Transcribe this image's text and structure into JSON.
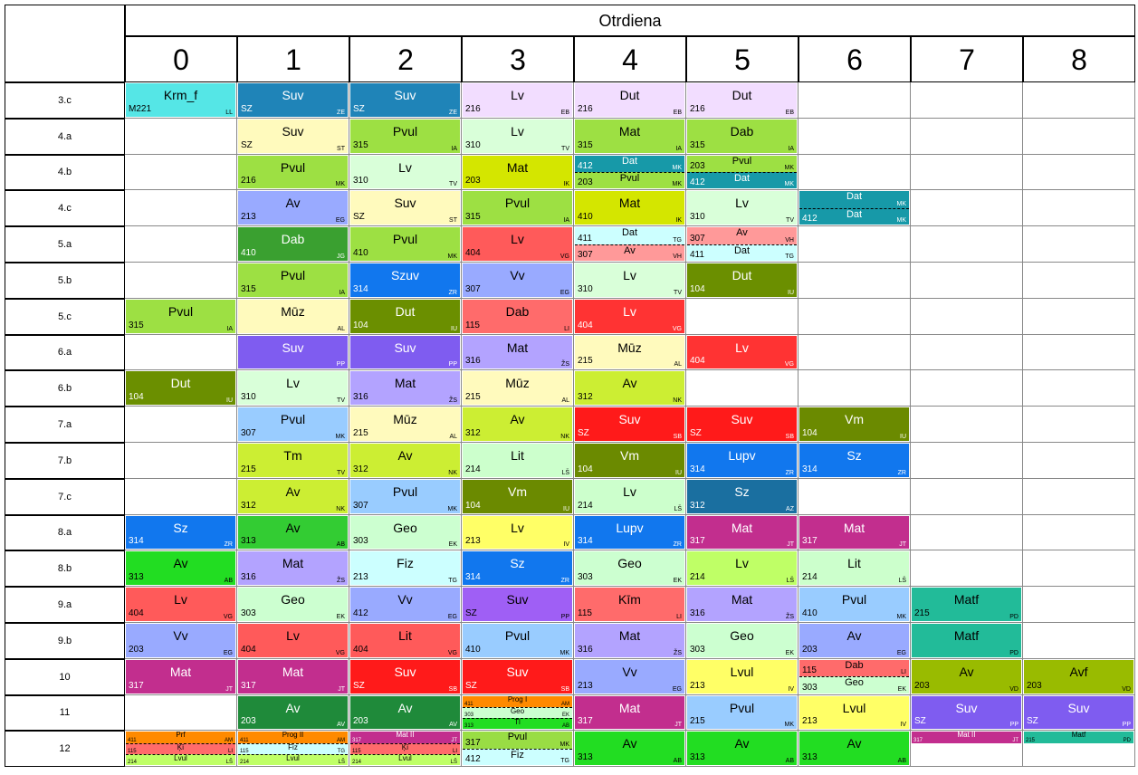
{
  "header": {
    "title": "Otrdiena"
  },
  "columns": [
    "0",
    "1",
    "2",
    "3",
    "4",
    "5",
    "6",
    "7",
    "8"
  ],
  "rows": [
    "3.c",
    "4.a",
    "4.b",
    "4.c",
    "5.a",
    "5.b",
    "5.c",
    "6.a",
    "6.b",
    "7.a",
    "7.b",
    "7.c",
    "8.a",
    "8.b",
    "9.a",
    "9.b",
    "10",
    "11",
    "12"
  ],
  "colors": {
    "Krm_f": "#55e6e6",
    "Suv_a": "#1e7fb0",
    "Suv_b": "#fff9bd",
    "Suv_c": "#7f5cf0",
    "Suv_d": "#ff1a1a",
    "Suv_e": "#9f5ff5",
    "Lv_a": "#f0d9ff",
    "Lv_b": "#d9ffd9",
    "Lv_c": "#ff5a5a",
    "Lv_d": "#ffff66",
    "Lv_e": "#bfff66",
    "Dut": "#f0d9ff",
    "Dut_b": "#6b8f00",
    "Mat_a": "#ccee33",
    "Mat_b": "#b3a3ff",
    "Mat_c": "#c22e8e",
    "Pvul": "#99dd44",
    "Pvul_b": "#cfe0ff",
    "Av_a": "#99aaff",
    "Av_b": "#33cc33",
    "Av_c": "#99cc00",
    "Av_d": "#ffd0d0",
    "Dab": "#3aa030",
    "Dab_b": "#ff6b6b",
    "Mūz": "#fffabb",
    "Vv": "#99aaee",
    "Szuv": "#1177ee",
    "Geo": "#ccffd0",
    "Sz": "#1177ee",
    "Sz_b": "#1a6fa0",
    "Tm": "#ccee33",
    "Vm": "#6b8a00",
    "Lit": "#ccffcc",
    "Lupv": "#1177ee",
    "Fiz": "#ccffff",
    "Kīm": "#ff6b6b",
    "Matf": "#22bb99",
    "Avf": "#99bb00",
    "Lvul": "#ffff66",
    "Dat": "#1799a8",
    "Suv_f": "#7f5cf0"
  },
  "cells": [
    {
      "r": 0,
      "c": 0,
      "room": "M221",
      "subj": "Krm_f",
      "t": "LL",
      "col": "#55e6e6"
    },
    {
      "r": 0,
      "c": 1,
      "room": "SZ",
      "subj": "Suv",
      "t": "ZE",
      "col": "#1f84b8"
    },
    {
      "r": 0,
      "c": 2,
      "room": "SZ",
      "subj": "Suv",
      "t": "ZE",
      "col": "#1f84b8"
    },
    {
      "r": 0,
      "c": 3,
      "room": "216",
      "subj": "Lv",
      "t": "EB",
      "col": "#f2ddff"
    },
    {
      "r": 0,
      "c": 4,
      "room": "216",
      "subj": "Dut",
      "t": "EB",
      "col": "#f2ddff"
    },
    {
      "r": 0,
      "c": 5,
      "room": "216",
      "subj": "Dut",
      "t": "EB",
      "col": "#f2ddff"
    },
    {
      "r": 1,
      "c": 1,
      "room": "SZ",
      "subj": "Suv",
      "t": "ST",
      "col": "#fffabd"
    },
    {
      "r": 1,
      "c": 2,
      "room": "315",
      "subj": "Pvul",
      "t": "IA",
      "col": "#9de043"
    },
    {
      "r": 1,
      "c": 3,
      "room": "310",
      "subj": "Lv",
      "t": "TV",
      "col": "#d9ffd9"
    },
    {
      "r": 1,
      "c": 4,
      "room": "315",
      "subj": "Mat",
      "t": "IA",
      "col": "#9de043"
    },
    {
      "r": 1,
      "c": 5,
      "room": "315",
      "subj": "Dab",
      "t": "IA",
      "col": "#9de043"
    },
    {
      "r": 2,
      "c": 1,
      "room": "216",
      "subj": "Pvul",
      "t": "MK",
      "col": "#9de043"
    },
    {
      "r": 2,
      "c": 2,
      "room": "310",
      "subj": "Lv",
      "t": "TV",
      "col": "#d9ffd9"
    },
    {
      "r": 2,
      "c": 3,
      "room": "203",
      "subj": "Mat",
      "t": "IK",
      "col": "#d4e600"
    },
    {
      "r": 3,
      "c": 1,
      "room": "213",
      "subj": "Av",
      "t": "EG",
      "col": "#99aaff"
    },
    {
      "r": 3,
      "c": 2,
      "room": "SZ",
      "subj": "Suv",
      "t": "ST",
      "col": "#fffabd"
    },
    {
      "r": 3,
      "c": 3,
      "room": "315",
      "subj": "Pvul",
      "t": "IA",
      "col": "#9de043"
    },
    {
      "r": 3,
      "c": 4,
      "room": "410",
      "subj": "Mat",
      "t": "IK",
      "col": "#d4e600"
    },
    {
      "r": 3,
      "c": 5,
      "room": "310",
      "subj": "Lv",
      "t": "TV",
      "col": "#d9ffd9"
    },
    {
      "r": 4,
      "c": 1,
      "room": "410",
      "subj": "Dab",
      "t": "JG",
      "col": "#3aa030"
    },
    {
      "r": 4,
      "c": 2,
      "room": "410",
      "subj": "Pvul",
      "t": "MK",
      "col": "#9de043"
    },
    {
      "r": 4,
      "c": 3,
      "room": "404",
      "subj": "Lv",
      "t": "VG",
      "col": "#ff5a5a"
    },
    {
      "r": 5,
      "c": 1,
      "room": "315",
      "subj": "Pvul",
      "t": "IA",
      "col": "#9de043"
    },
    {
      "r": 5,
      "c": 2,
      "room": "314",
      "subj": "Szuv",
      "t": "ZR",
      "col": "#1177ee"
    },
    {
      "r": 5,
      "c": 3,
      "room": "307",
      "subj": "Vv",
      "t": "EG",
      "col": "#99aaff"
    },
    {
      "r": 5,
      "c": 4,
      "room": "310",
      "subj": "Lv",
      "t": "TV",
      "col": "#d9ffd9"
    },
    {
      "r": 5,
      "c": 5,
      "room": "104",
      "subj": "Dut",
      "t": "IU",
      "col": "#6b8f00"
    },
    {
      "r": 6,
      "c": 0,
      "room": "315",
      "subj": "Pvul",
      "t": "IA",
      "col": "#9de043"
    },
    {
      "r": 6,
      "c": 1,
      "room": "",
      "subj": "Mūz",
      "t": "AL",
      "col": "#fffabd"
    },
    {
      "r": 6,
      "c": 2,
      "room": "104",
      "subj": "Dut",
      "t": "IU",
      "col": "#6b8f00"
    },
    {
      "r": 6,
      "c": 3,
      "room": "115",
      "subj": "Dab",
      "t": "LI",
      "col": "#ff6b6b"
    },
    {
      "r": 6,
      "c": 4,
      "room": "404",
      "subj": "Lv",
      "t": "VG",
      "col": "#ff3333"
    },
    {
      "r": 7,
      "c": 1,
      "room": "",
      "subj": "Suv",
      "t": "PP",
      "col": "#7f5cf0"
    },
    {
      "r": 7,
      "c": 2,
      "room": "",
      "subj": "Suv",
      "t": "PP",
      "col": "#7f5cf0"
    },
    {
      "r": 7,
      "c": 3,
      "room": "316",
      "subj": "Mat",
      "t": "ŽS",
      "col": "#b3a3ff"
    },
    {
      "r": 7,
      "c": 4,
      "room": "215",
      "subj": "Mūz",
      "t": "AL",
      "col": "#fffabd"
    },
    {
      "r": 7,
      "c": 5,
      "room": "404",
      "subj": "Lv",
      "t": "VG",
      "col": "#ff3333"
    },
    {
      "r": 8,
      "c": 0,
      "room": "104",
      "subj": "Dut",
      "t": "IU",
      "col": "#6b8f00"
    },
    {
      "r": 8,
      "c": 1,
      "room": "310",
      "subj": "Lv",
      "t": "TV",
      "col": "#d9ffd9"
    },
    {
      "r": 8,
      "c": 2,
      "room": "316",
      "subj": "Mat",
      "t": "ŽS",
      "col": "#b3a3ff"
    },
    {
      "r": 8,
      "c": 3,
      "room": "215",
      "subj": "Mūz",
      "t": "AL",
      "col": "#fffabd"
    },
    {
      "r": 8,
      "c": 4,
      "room": "312",
      "subj": "Av",
      "t": "NK",
      "col": "#ccee33"
    },
    {
      "r": 9,
      "c": 1,
      "room": "307",
      "subj": "Pvul",
      "t": "MK",
      "col": "#99ccff"
    },
    {
      "r": 9,
      "c": 2,
      "room": "215",
      "subj": "Mūz",
      "t": "AL",
      "col": "#fffabd"
    },
    {
      "r": 9,
      "c": 3,
      "room": "312",
      "subj": "Av",
      "t": "NK",
      "col": "#ccee33"
    },
    {
      "r": 9,
      "c": 4,
      "room": "SZ",
      "subj": "Suv",
      "t": "SB",
      "col": "#ff1a1a"
    },
    {
      "r": 9,
      "c": 5,
      "room": "SZ",
      "subj": "Suv",
      "t": "SB",
      "col": "#ff1a1a"
    },
    {
      "r": 9,
      "c": 6,
      "room": "104",
      "subj": "Vm",
      "t": "IU",
      "col": "#6b8a00"
    },
    {
      "r": 10,
      "c": 1,
      "room": "215",
      "subj": "Tm",
      "t": "TV",
      "col": "#ccee33"
    },
    {
      "r": 10,
      "c": 2,
      "room": "312",
      "subj": "Av",
      "t": "NK",
      "col": "#ccee33"
    },
    {
      "r": 10,
      "c": 3,
      "room": "214",
      "subj": "Lit",
      "t": "LŠ",
      "col": "#ccffcc"
    },
    {
      "r": 10,
      "c": 4,
      "room": "104",
      "subj": "Vm",
      "t": "IU",
      "col": "#6b8a00"
    },
    {
      "r": 10,
      "c": 5,
      "room": "314",
      "subj": "Lupv",
      "t": "ZR",
      "col": "#1177ee"
    },
    {
      "r": 10,
      "c": 6,
      "room": "314",
      "subj": "Sz",
      "t": "ZR",
      "col": "#1177ee"
    },
    {
      "r": 11,
      "c": 1,
      "room": "312",
      "subj": "Av",
      "t": "NK",
      "col": "#ccee33"
    },
    {
      "r": 11,
      "c": 2,
      "room": "307",
      "subj": "Pvul",
      "t": "MK",
      "col": "#99ccff"
    },
    {
      "r": 11,
      "c": 3,
      "room": "104",
      "subj": "Vm",
      "t": "IU",
      "col": "#6b8a00"
    },
    {
      "r": 11,
      "c": 4,
      "room": "214",
      "subj": "Lv",
      "t": "LŠ",
      "col": "#ccffcc"
    },
    {
      "r": 11,
      "c": 5,
      "room": "312",
      "subj": "Sz",
      "t": "AZ",
      "col": "#1a6fa0"
    },
    {
      "r": 12,
      "c": 0,
      "room": "314",
      "subj": "Sz",
      "t": "ZR",
      "col": "#1177ee"
    },
    {
      "r": 12,
      "c": 1,
      "room": "313",
      "subj": "Av",
      "t": "AB",
      "col": "#33cc33"
    },
    {
      "r": 12,
      "c": 2,
      "room": "303",
      "subj": "Geo",
      "t": "EK",
      "col": "#ccffd0"
    },
    {
      "r": 12,
      "c": 3,
      "room": "213",
      "subj": "Lv",
      "t": "IV",
      "col": "#ffff66"
    },
    {
      "r": 12,
      "c": 4,
      "room": "314",
      "subj": "Lupv",
      "t": "ZR",
      "col": "#1177ee"
    },
    {
      "r": 12,
      "c": 5,
      "room": "317",
      "subj": "Mat",
      "t": "JT",
      "col": "#c22e8e"
    },
    {
      "r": 12,
      "c": 6,
      "room": "317",
      "subj": "Mat",
      "t": "JT",
      "col": "#c22e8e"
    },
    {
      "r": 13,
      "c": 0,
      "room": "313",
      "subj": "Av",
      "t": "AB",
      "col": "#22dd22"
    },
    {
      "r": 13,
      "c": 1,
      "room": "316",
      "subj": "Mat",
      "t": "ŽS",
      "col": "#b3a3ff"
    },
    {
      "r": 13,
      "c": 2,
      "room": "213",
      "subj": "Fiz",
      "t": "TG",
      "col": "#ccffff"
    },
    {
      "r": 13,
      "c": 3,
      "room": "314",
      "subj": "Sz",
      "t": "ZR",
      "col": "#1177ee"
    },
    {
      "r": 13,
      "c": 4,
      "room": "303",
      "subj": "Geo",
      "t": "EK",
      "col": "#ccffd0"
    },
    {
      "r": 13,
      "c": 5,
      "room": "214",
      "subj": "Lv",
      "t": "LŠ",
      "col": "#bfff66"
    },
    {
      "r": 13,
      "c": 6,
      "room": "214",
      "subj": "Lit",
      "t": "LŠ",
      "col": "#ccffcc"
    },
    {
      "r": 14,
      "c": 0,
      "room": "404",
      "subj": "Lv",
      "t": "VG",
      "col": "#ff5a5a"
    },
    {
      "r": 14,
      "c": 1,
      "room": "303",
      "subj": "Geo",
      "t": "EK",
      "col": "#ccffd0"
    },
    {
      "r": 14,
      "c": 2,
      "room": "412",
      "subj": "Vv",
      "t": "EG",
      "col": "#99aaff"
    },
    {
      "r": 14,
      "c": 3,
      "room": "SZ",
      "subj": "Suv",
      "t": "PP",
      "col": "#9f5ff5"
    },
    {
      "r": 14,
      "c": 4,
      "room": "115",
      "subj": "Kīm",
      "t": "LI",
      "col": "#ff6b6b"
    },
    {
      "r": 14,
      "c": 5,
      "room": "316",
      "subj": "Mat",
      "t": "ŽS",
      "col": "#b3a3ff"
    },
    {
      "r": 14,
      "c": 6,
      "room": "410",
      "subj": "Pvul",
      "t": "MK",
      "col": "#99ccff"
    },
    {
      "r": 14,
      "c": 7,
      "room": "215",
      "subj": "Matf",
      "t": "PD",
      "col": "#22bb99"
    },
    {
      "r": 15,
      "c": 0,
      "room": "203",
      "subj": "Vv",
      "t": "EG",
      "col": "#99aaff"
    },
    {
      "r": 15,
      "c": 1,
      "room": "404",
      "subj": "Lv",
      "t": "VG",
      "col": "#ff5a5a"
    },
    {
      "r": 15,
      "c": 2,
      "room": "404",
      "subj": "Lit",
      "t": "VG",
      "col": "#ff5a5a"
    },
    {
      "r": 15,
      "c": 3,
      "room": "410",
      "subj": "Pvul",
      "t": "MK",
      "col": "#99ccff"
    },
    {
      "r": 15,
      "c": 4,
      "room": "316",
      "subj": "Mat",
      "t": "ŽS",
      "col": "#b3a3ff"
    },
    {
      "r": 15,
      "c": 5,
      "room": "303",
      "subj": "Geo",
      "t": "EK",
      "col": "#ccffd0"
    },
    {
      "r": 15,
      "c": 6,
      "room": "203",
      "subj": "Av",
      "t": "EG",
      "col": "#99aaff"
    },
    {
      "r": 15,
      "c": 7,
      "room": "",
      "subj": "Matf",
      "t": "PD",
      "col": "#22bb99"
    },
    {
      "r": 16,
      "c": 0,
      "room": "317",
      "subj": "Mat",
      "t": "JT",
      "col": "#c22e8e"
    },
    {
      "r": 16,
      "c": 1,
      "room": "317",
      "subj": "Mat",
      "t": "JT",
      "col": "#c22e8e"
    },
    {
      "r": 16,
      "c": 2,
      "room": "SZ",
      "subj": "Suv",
      "t": "SB",
      "col": "#ff1a1a"
    },
    {
      "r": 16,
      "c": 3,
      "room": "SZ",
      "subj": "Suv",
      "t": "SB",
      "col": "#ff1a1a"
    },
    {
      "r": 16,
      "c": 4,
      "room": "213",
      "subj": "Vv",
      "t": "EG",
      "col": "#99aaff"
    },
    {
      "r": 16,
      "c": 5,
      "room": "213",
      "subj": "Lvul",
      "t": "IV",
      "col": "#ffff66"
    },
    {
      "r": 16,
      "c": 7,
      "room": "203",
      "subj": "Av",
      "t": "VD",
      "col": "#99bb00"
    },
    {
      "r": 16,
      "c": 8,
      "room": "203",
      "subj": "Avf",
      "t": "VD",
      "col": "#99bb00"
    },
    {
      "r": 17,
      "c": 1,
      "room": "203",
      "subj": "Av",
      "t": "AV",
      "col": "#1f8a3a"
    },
    {
      "r": 17,
      "c": 2,
      "room": "203",
      "subj": "Av",
      "t": "AV",
      "col": "#1f8a3a"
    },
    {
      "r": 17,
      "c": 4,
      "room": "317",
      "subj": "Mat",
      "t": "JT",
      "col": "#c22e8e"
    },
    {
      "r": 17,
      "c": 5,
      "room": "215",
      "subj": "Pvul",
      "t": "MK",
      "col": "#99ccff"
    },
    {
      "r": 17,
      "c": 6,
      "room": "213",
      "subj": "Lvul",
      "t": "IV",
      "col": "#ffff66"
    },
    {
      "r": 17,
      "c": 7,
      "room": "SZ",
      "subj": "Suv",
      "t": "PP",
      "col": "#7f5cf0"
    },
    {
      "r": 17,
      "c": 8,
      "room": "SZ",
      "subj": "Suv",
      "t": "PP",
      "col": "#7f5cf0"
    },
    {
      "r": 18,
      "c": 4,
      "room": "313",
      "subj": "Av",
      "t": "AB",
      "col": "#22dd22"
    },
    {
      "r": 18,
      "c": 5,
      "room": "313",
      "subj": "Av",
      "t": "AB",
      "col": "#22dd22"
    },
    {
      "r": 18,
      "c": 6,
      "room": "313",
      "subj": "Av",
      "t": "AB",
      "col": "#22dd22"
    }
  ],
  "halves": [
    {
      "r": 2,
      "c": 4,
      "items": [
        {
          "room": "412",
          "subj": "Dat",
          "t": "MK",
          "col": "#1799a8"
        },
        {
          "room": "203",
          "subj": "Pvul",
          "t": "MK",
          "col": "#9de043"
        }
      ]
    },
    {
      "r": 2,
      "c": 5,
      "items": [
        {
          "room": "203",
          "subj": "Pvul",
          "t": "MK",
          "col": "#9de043"
        },
        {
          "room": "412",
          "subj": "Dat",
          "t": "MK",
          "col": "#1799a8"
        }
      ]
    },
    {
      "r": 3,
      "c": 6,
      "items": [
        {
          "room": "",
          "subj": "Dat",
          "t": "MK",
          "col": "#1799a8"
        },
        {
          "room": "412",
          "subj": "Dat",
          "t": "MK",
          "col": "#1799a8"
        }
      ]
    },
    {
      "r": 4,
      "c": 4,
      "items": [
        {
          "room": "411",
          "subj": "Dat",
          "t": "TG",
          "col": "#ccffff"
        },
        {
          "room": "307",
          "subj": "Av",
          "t": "VH",
          "col": "#ff9999"
        }
      ]
    },
    {
      "r": 4,
      "c": 5,
      "items": [
        {
          "room": "307",
          "subj": "Av",
          "t": "VH",
          "col": "#ff9999"
        },
        {
          "room": "411",
          "subj": "Dat",
          "t": "TG",
          "col": "#ccffff"
        }
      ]
    },
    {
      "r": 16,
      "c": 6,
      "items": [
        {
          "room": "115",
          "subj": "Dab",
          "t": "LI",
          "col": "#ff6b6b"
        },
        {
          "room": "303",
          "subj": "Geo",
          "t": "EK",
          "col": "#ccffd0"
        }
      ]
    },
    {
      "r": 18,
      "c": 3,
      "items": [
        {
          "room": "317",
          "subj": "Pvul",
          "t": "MK",
          "col": "#99dd44"
        },
        {
          "room": "412",
          "subj": "Fiz",
          "t": "TG",
          "col": "#ccffff"
        }
      ]
    }
  ],
  "thirds": [
    {
      "r": 17,
      "c": 3,
      "items": [
        {
          "room": "411",
          "subj": "Prog I",
          "t": "AM",
          "col": "#ff8a00"
        },
        {
          "room": "303",
          "subj": "Geo",
          "t": "EK",
          "col": "#ccffd0"
        },
        {
          "room": "313",
          "subj": "Tl",
          "t": "AB",
          "col": "#22dd22"
        }
      ]
    },
    {
      "r": 18,
      "c": 0,
      "items": [
        {
          "room": "411",
          "subj": "Prf",
          "t": "AM",
          "col": "#ff8a00"
        },
        {
          "room": "115",
          "subj": "Ķī",
          "t": "LI",
          "col": "#ff6b6b"
        },
        {
          "room": "214",
          "subj": "Lvul",
          "t": "LŠ",
          "col": "#bfff66"
        }
      ]
    },
    {
      "r": 18,
      "c": 1,
      "items": [
        {
          "room": "411",
          "subj": "Prog II",
          "t": "AM",
          "col": "#ff8a00"
        },
        {
          "room": "115",
          "subj": "Fiz",
          "t": "TG",
          "col": "#ccffff"
        },
        {
          "room": "214",
          "subj": "Lvul",
          "t": "LŠ",
          "col": "#bfff66"
        }
      ]
    },
    {
      "r": 18,
      "c": 2,
      "items": [
        {
          "room": "317",
          "subj": "Mat II",
          "t": "JT",
          "col": "#c22e8e"
        },
        {
          "room": "115",
          "subj": "Ķī",
          "t": "LI",
          "col": "#ff6b6b"
        },
        {
          "room": "214",
          "subj": "Lvul",
          "t": "LŠ",
          "col": "#bfff66"
        }
      ]
    },
    {
      "r": 18,
      "c": 7,
      "items": [
        {
          "room": "317",
          "subj": "Mat II",
          "t": "JT",
          "col": "#c22e8e"
        }
      ]
    },
    {
      "r": 18,
      "c": 8,
      "items": [
        {
          "room": "215",
          "subj": "Matf",
          "t": "PD",
          "col": "#22bb99"
        }
      ]
    }
  ]
}
